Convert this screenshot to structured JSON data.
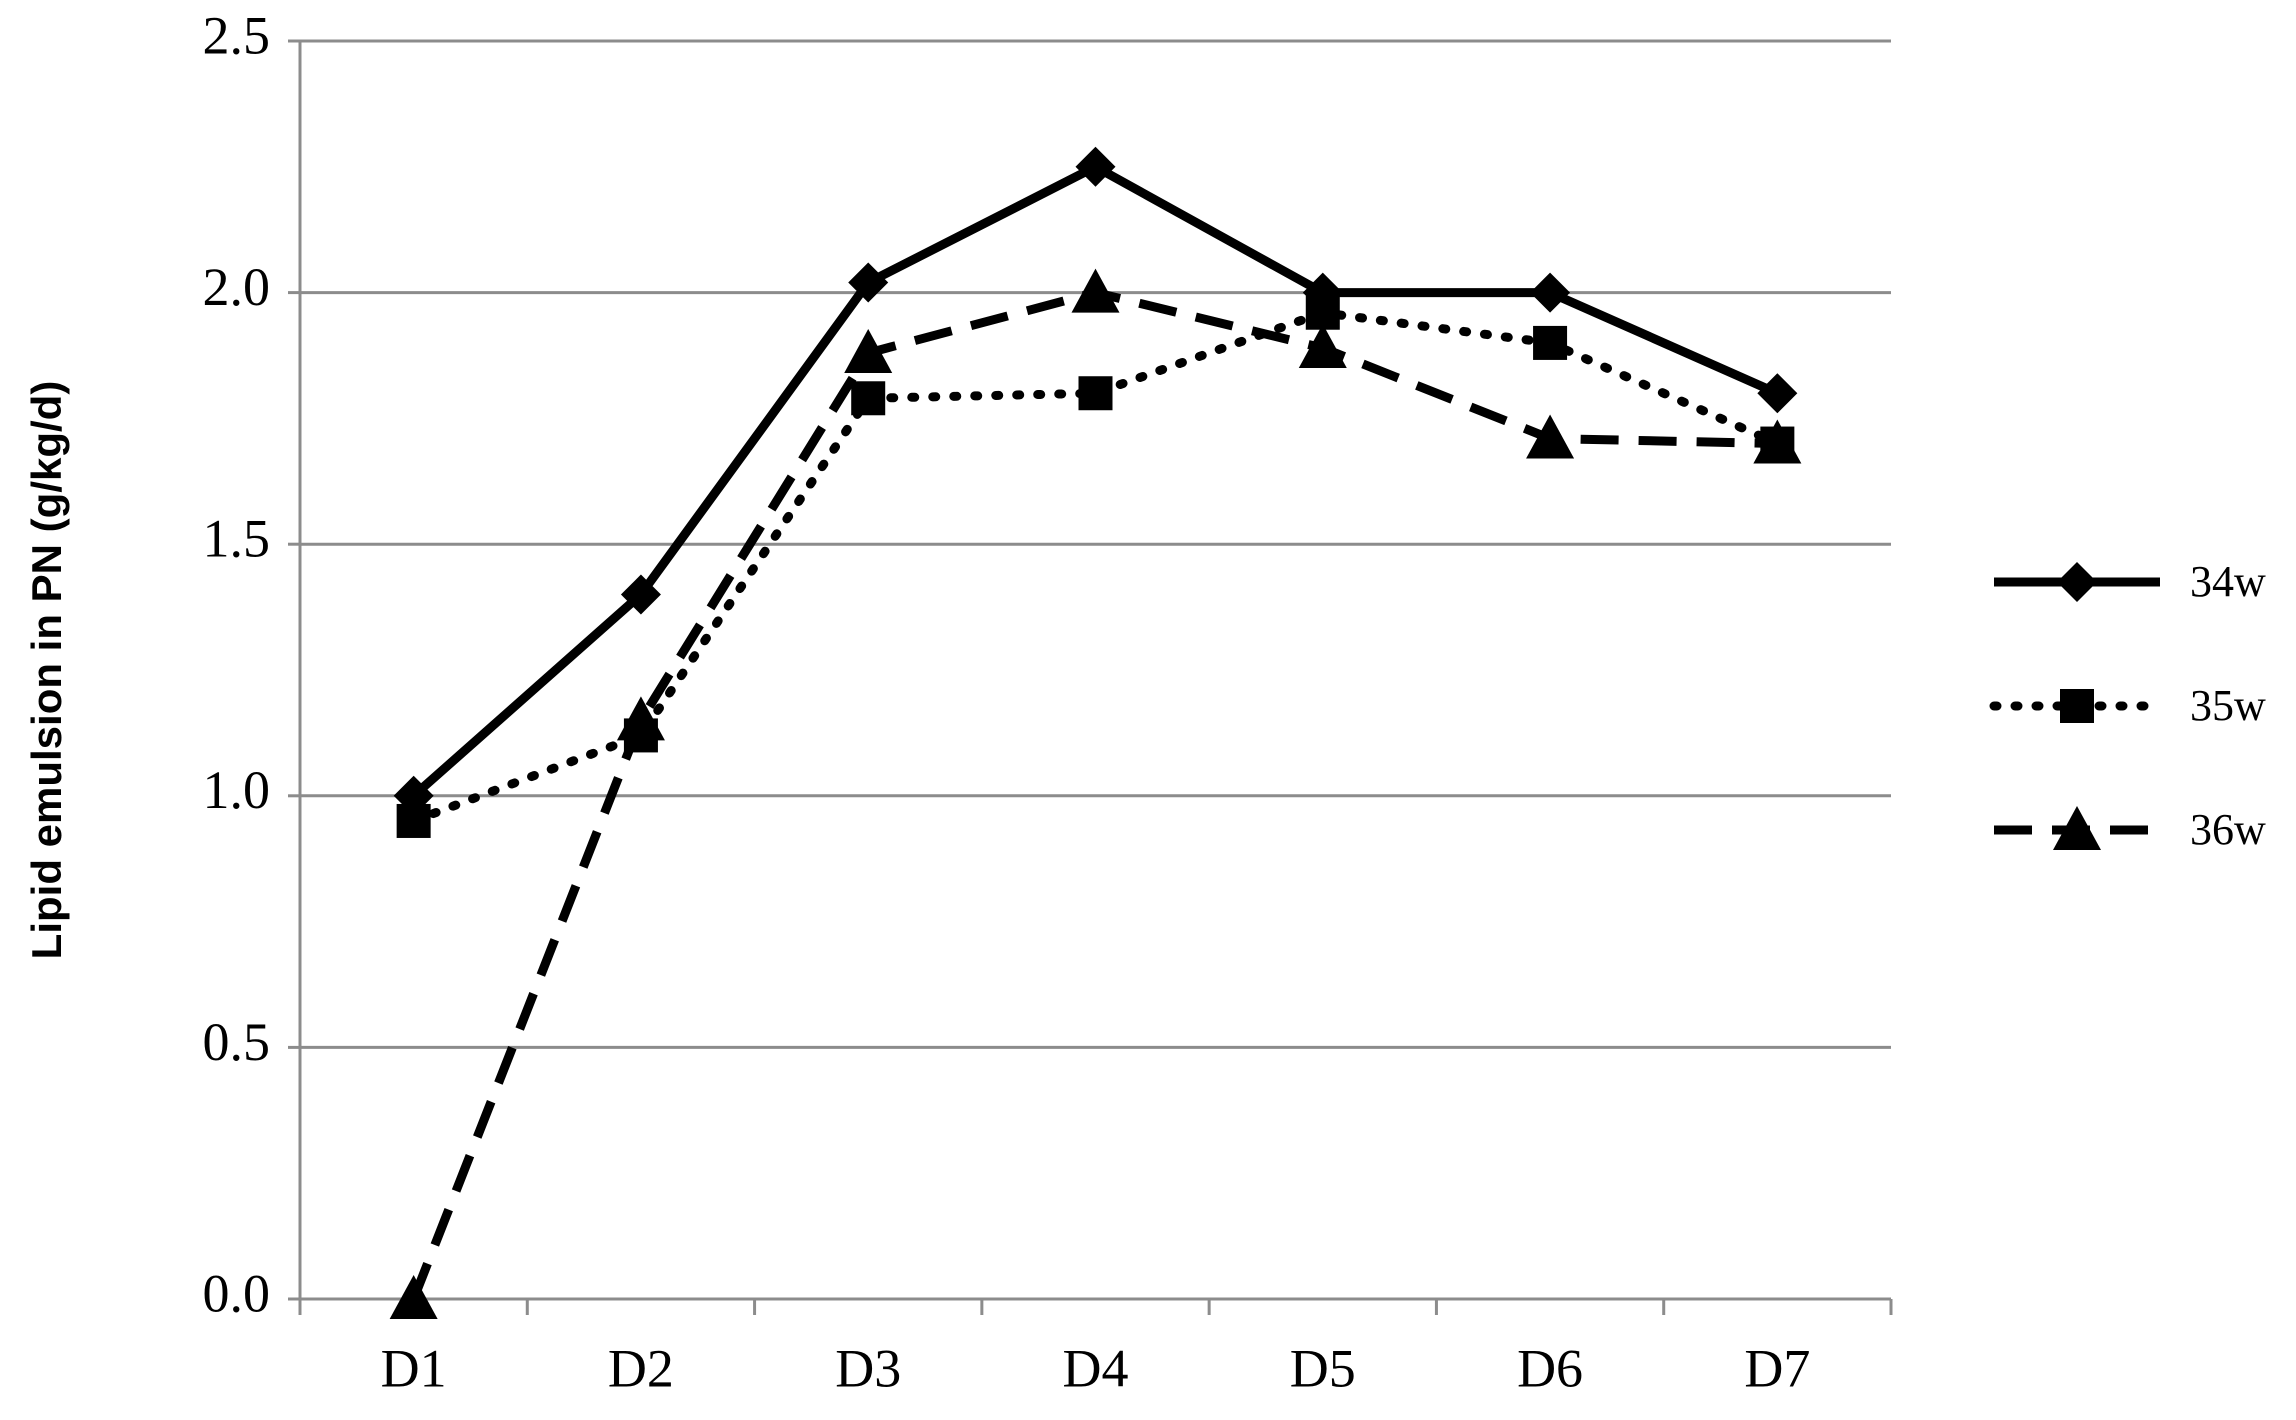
{
  "chart_data": {
    "type": "line",
    "y_label": "Lipid emulsion in PN (g/kg/d)",
    "categories": [
      "D1",
      "D2",
      "D3",
      "D4",
      "D5",
      "D6",
      "D7"
    ],
    "series": [
      {
        "name": "34w",
        "color": "#000000",
        "dash": "solid",
        "marker": "diamond",
        "values": [
          1.0,
          1.4,
          2.02,
          2.25,
          2.0,
          2.0,
          1.8
        ]
      },
      {
        "name": "35w",
        "color": "#000000",
        "dash": "dotted",
        "marker": "square",
        "values": [
          0.95,
          1.12,
          1.79,
          1.8,
          1.96,
          1.9,
          1.7
        ]
      },
      {
        "name": "36w",
        "color": "#000000",
        "dash": "dashed",
        "marker": "triangle",
        "values": [
          0.0,
          1.15,
          1.88,
          2.0,
          1.89,
          1.71,
          1.7
        ]
      }
    ],
    "ylim": [
      0,
      2.5
    ],
    "yticks": [
      {
        "value": 0,
        "label": "0.0"
      },
      {
        "value": 0.5,
        "label": "0.5"
      },
      {
        "value": 1,
        "label": "1.0"
      },
      {
        "value": 1.5,
        "label": "1.5"
      },
      {
        "value": 2,
        "label": "2.0"
      },
      {
        "value": 2.5,
        "label": "2.5"
      }
    ],
    "grid": true,
    "legend": "right"
  }
}
